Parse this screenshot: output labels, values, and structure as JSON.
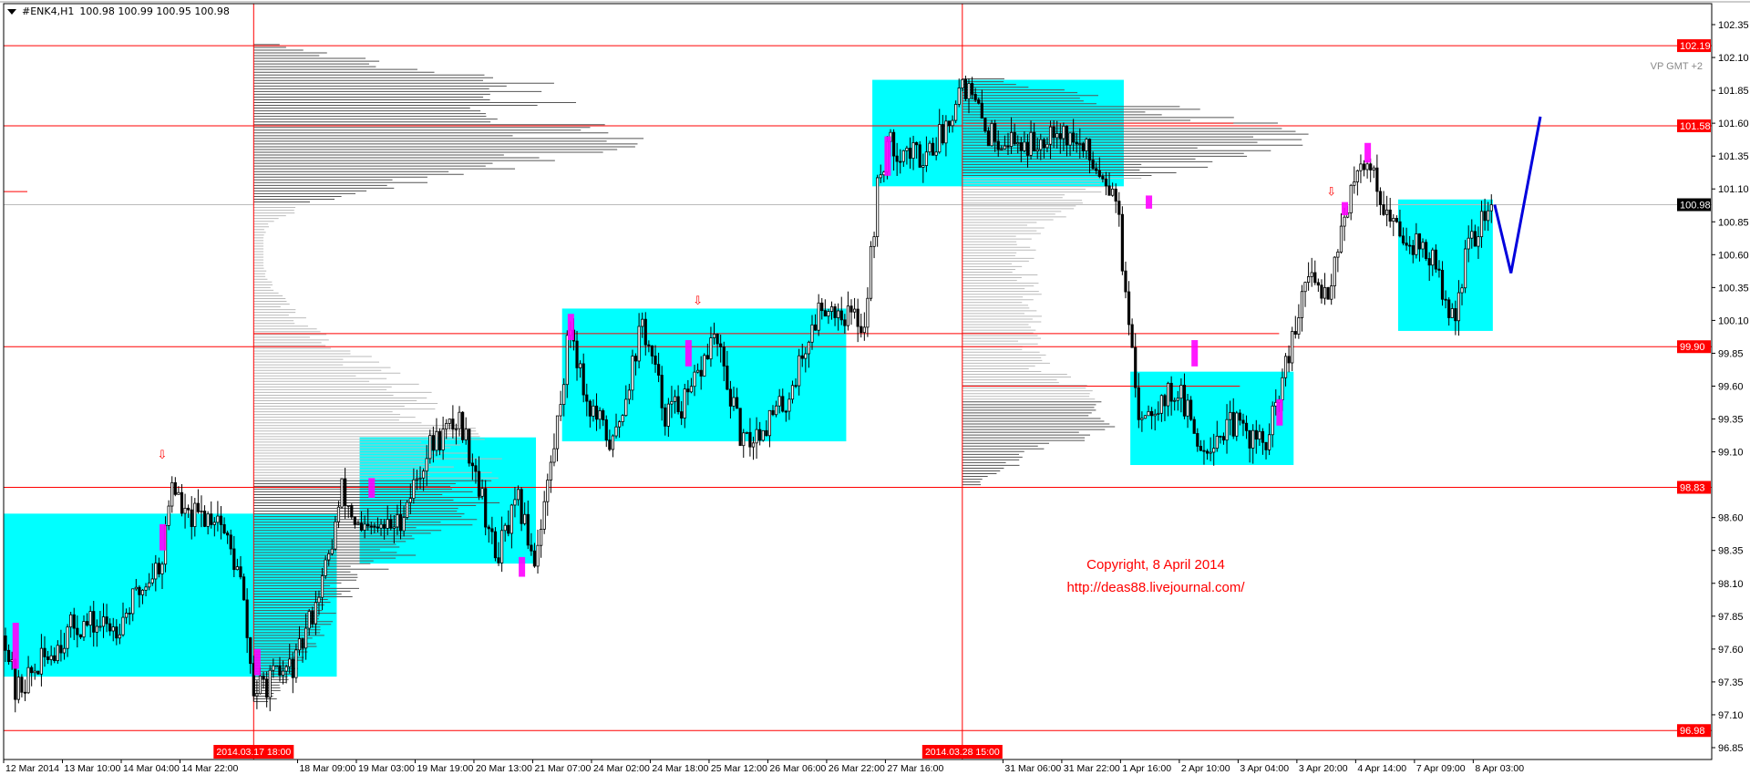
{
  "header": {
    "symbol": "#ENK4,H1",
    "ohlc": "100.98 100.99 100.95 100.98"
  },
  "colors": {
    "zone": "#00FFFF",
    "level": "#FF0000",
    "highlight": "#FF00FF",
    "projection": "#0000DD",
    "bull": "#FFFFFF",
    "bear": "#000000",
    "profile_dark": "#555555",
    "profile_light": "#BBBBBB"
  },
  "annotations": {
    "vp_label": "VP GMT +2",
    "copyright": "Copyright, 8 April 2014",
    "url": "http://deas88.livejournal.com/"
  },
  "chart_data": {
    "type": "candlestick",
    "timeframe": "H1",
    "ylim": [
      96.85,
      102.35
    ],
    "y_ticks": [
      "102.35",
      "102.10",
      "101.85",
      "101.60",
      "101.35",
      "101.10",
      "100.85",
      "100.60",
      "100.35",
      "100.10",
      "99.85",
      "99.60",
      "99.35",
      "99.10",
      "98.60",
      "98.35",
      "98.10",
      "97.85",
      "97.60",
      "97.35",
      "97.10",
      "96.85"
    ],
    "x_labels": [
      {
        "bar": 0,
        "text": "12 Mar 2014"
      },
      {
        "bar": 18,
        "text": "13 Mar 10:00"
      },
      {
        "bar": 36,
        "text": "14 Mar 04:00"
      },
      {
        "bar": 54,
        "text": "14 Mar 22:00"
      },
      {
        "bar": 90,
        "text": "18 Mar 09:00"
      },
      {
        "bar": 108,
        "text": "19 Mar 03:00"
      },
      {
        "bar": 126,
        "text": "19 Mar 19:00"
      },
      {
        "bar": 144,
        "text": "20 Mar 13:00"
      },
      {
        "bar": 162,
        "text": "21 Mar 07:00"
      },
      {
        "bar": 180,
        "text": "24 Mar 02:00"
      },
      {
        "bar": 198,
        "text": "24 Mar 18:00"
      },
      {
        "bar": 216,
        "text": "25 Mar 12:00"
      },
      {
        "bar": 234,
        "text": "26 Mar 06:00"
      },
      {
        "bar": 252,
        "text": "26 Mar 22:00"
      },
      {
        "bar": 270,
        "text": "27 Mar 16:00"
      },
      {
        "bar": 306,
        "text": "31 Mar 06:00"
      },
      {
        "bar": 324,
        "text": "31 Mar 22:00"
      },
      {
        "bar": 342,
        "text": "1 Apr 16:00"
      },
      {
        "bar": 360,
        "text": "2 Apr 10:00"
      },
      {
        "bar": 378,
        "text": "3 Apr 04:00"
      },
      {
        "bar": 396,
        "text": "3 Apr 20:00"
      },
      {
        "bar": 414,
        "text": "4 Apr 14:00"
      },
      {
        "bar": 432,
        "text": "7 Apr 09:00"
      },
      {
        "bar": 450,
        "text": "8 Apr 03:00"
      }
    ],
    "price_path": [
      [
        0,
        97.7
      ],
      [
        3,
        97.27
      ],
      [
        21,
        97.78
      ],
      [
        34,
        97.78
      ],
      [
        48,
        98.29
      ],
      [
        51,
        98.89
      ],
      [
        55,
        98.59
      ],
      [
        65,
        98.63
      ],
      [
        72,
        98.12
      ],
      [
        76,
        97.27
      ],
      [
        89,
        97.49
      ],
      [
        99,
        98.29
      ],
      [
        103,
        98.8
      ],
      [
        109,
        98.46
      ],
      [
        120,
        98.55
      ],
      [
        130,
        99.14
      ],
      [
        139,
        99.35
      ],
      [
        144,
        98.97
      ],
      [
        150,
        98.29
      ],
      [
        157,
        98.71
      ],
      [
        162,
        98.29
      ],
      [
        168,
        99.14
      ],
      [
        173,
        100.08
      ],
      [
        178,
        99.48
      ],
      [
        186,
        99.14
      ],
      [
        195,
        100.08
      ],
      [
        202,
        99.4
      ],
      [
        209,
        99.48
      ],
      [
        217,
        99.99
      ],
      [
        226,
        99.14
      ],
      [
        239,
        99.48
      ],
      [
        250,
        100.24
      ],
      [
        263,
        100.08
      ],
      [
        267,
        101.09
      ],
      [
        270,
        101.43
      ],
      [
        280,
        101.35
      ],
      [
        287,
        101.52
      ],
      [
        293,
        101.94
      ],
      [
        301,
        101.52
      ],
      [
        315,
        101.43
      ],
      [
        321,
        101.6
      ],
      [
        332,
        101.35
      ],
      [
        340,
        101.09
      ],
      [
        344,
        99.99
      ],
      [
        347,
        99.4
      ],
      [
        359,
        99.57
      ],
      [
        366,
        99.14
      ],
      [
        376,
        99.31
      ],
      [
        386,
        99.14
      ],
      [
        392,
        99.74
      ],
      [
        395,
        99.99
      ],
      [
        398,
        100.41
      ],
      [
        405,
        100.33
      ],
      [
        410,
        100.92
      ],
      [
        417,
        101.35
      ],
      [
        424,
        100.84
      ],
      [
        433,
        100.67
      ],
      [
        438,
        100.5
      ],
      [
        443,
        100.08
      ],
      [
        448,
        100.67
      ],
      [
        455,
        100.98
      ]
    ],
    "current_price": "100.98",
    "levels": [
      {
        "price": 102.19,
        "label": "102.19"
      },
      {
        "price": 101.58,
        "label": "101.58"
      },
      {
        "price": 99.9,
        "label": "99.90"
      },
      {
        "price": 98.83,
        "label": "98.83"
      },
      {
        "price": 96.98,
        "label": "96.98"
      }
    ],
    "vertical_markers": [
      {
        "bar": 76,
        "label": "2014.03.17 18:00"
      },
      {
        "bar": 293,
        "label": "2014.03.28 15:00"
      }
    ],
    "zones": [
      {
        "from": 0,
        "to": 102,
        "high": 98.63,
        "low": 97.39
      },
      {
        "from": 109,
        "to": 163,
        "high": 99.21,
        "low": 98.25
      },
      {
        "from": 171,
        "to": 258,
        "high": 100.19,
        "low": 99.18
      },
      {
        "from": 266,
        "to": 343,
        "high": 101.93,
        "low": 101.12
      },
      {
        "from": 345,
        "to": 395,
        "high": 99.71,
        "low": 99.0
      },
      {
        "from": 427,
        "to": 456,
        "high": 101.02,
        "low": 100.02
      }
    ],
    "poc_lines": [
      {
        "from": 76,
        "to": 390,
        "price": 100.0
      },
      {
        "from": 294,
        "to": 376,
        "price": 101.6
      },
      {
        "from": 293,
        "to": 378,
        "price": 99.6
      }
    ],
    "projection": [
      [
        456,
        100.98
      ],
      [
        461,
        100.46
      ],
      [
        470,
        101.65
      ]
    ]
  }
}
